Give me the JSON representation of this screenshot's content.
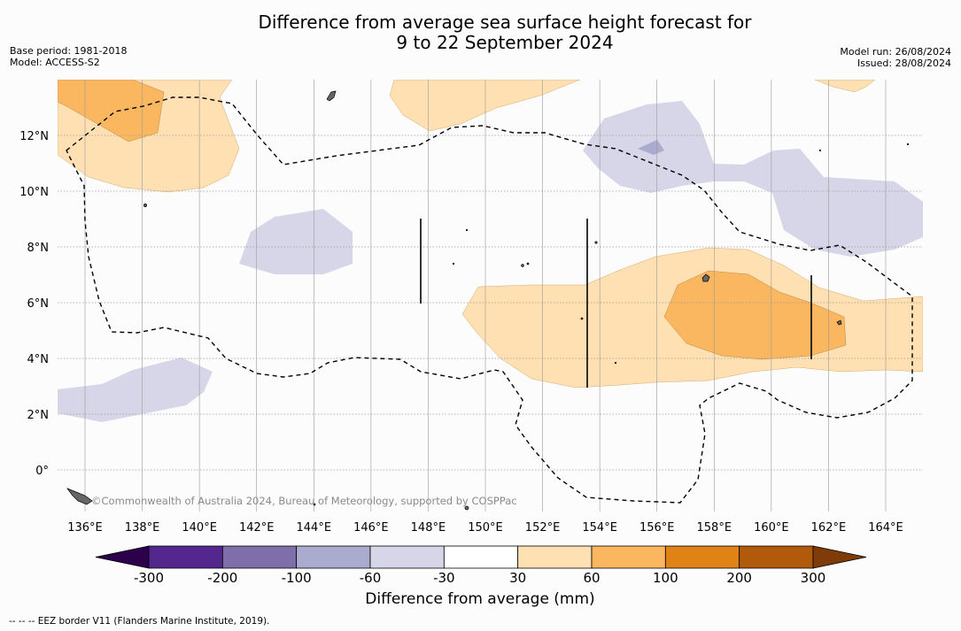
{
  "title": {
    "line1": "Difference from average sea surface height forecast for",
    "line2": "9 to 22 September 2024"
  },
  "meta": {
    "base_period": "Base period: 1981-2018",
    "model": "Model: ACCESS-S2",
    "model_run": "Model run: 26/08/2024",
    "issued": "Issued: 28/08/2024"
  },
  "credit": "©Commonwealth of Australia 2024, Bureau of Meteorology, supported by COSPPac",
  "footnote": "-- -- -- EEZ border V11 (Flanders Marine Institute, 2019).",
  "chart_data": {
    "type": "heatmap",
    "map_type": "filled contour map",
    "x_ticks": [
      "136°E",
      "138°E",
      "140°E",
      "142°E",
      "144°E",
      "146°E",
      "148°E",
      "150°E",
      "152°E",
      "154°E",
      "156°E",
      "158°E",
      "160°E",
      "162°E",
      "164°E"
    ],
    "x_tick_values": [
      136,
      138,
      140,
      142,
      144,
      146,
      148,
      150,
      152,
      154,
      156,
      158,
      160,
      162,
      164
    ],
    "y_ticks": [
      "0°",
      "2°N",
      "4°N",
      "6°N",
      "8°N",
      "10°N",
      "12°N"
    ],
    "y_tick_values": [
      0,
      2,
      4,
      6,
      8,
      10,
      12
    ],
    "lon_range": [
      135,
      166
    ],
    "lat_range": [
      -1.5,
      14
    ],
    "grid": true,
    "colorbar": {
      "label": "Difference from average (mm)",
      "extend": "both",
      "tick_labels": [
        "-300",
        "-200",
        "-100",
        "-60",
        "-30",
        "30",
        "60",
        "100",
        "200",
        "300"
      ],
      "bins": [
        {
          "range": [
            -300,
            -200
          ],
          "color": "#54278f"
        },
        {
          "range": [
            -200,
            -100
          ],
          "color": "#7e6fab"
        },
        {
          "range": [
            -100,
            -60
          ],
          "color": "#ababd0"
        },
        {
          "range": [
            -60,
            -30
          ],
          "color": "#d6d6e8"
        },
        {
          "range": [
            -30,
            30
          ],
          "color": "#ffffff"
        },
        {
          "range": [
            30,
            60
          ],
          "color": "#fee0b2"
        },
        {
          "range": [
            60,
            100
          ],
          "color": "#fbb660"
        },
        {
          "range": [
            100,
            200
          ],
          "color": "#e08316"
        },
        {
          "range": [
            200,
            300
          ],
          "color": "#b25a0b"
        }
      ],
      "under_color": "#2d004b",
      "over_color": "#7f3b08"
    },
    "regions": [
      {
        "level": "30 to 60",
        "color": "#fee0b2",
        "area": "northwest of map, 135-141E, 10-14N"
      },
      {
        "level": "60 to 100",
        "color": "#fbb660",
        "area": "135-138.5E, 12-14N"
      },
      {
        "level": "30 to 60",
        "color": "#fee0b2",
        "area": "148-152E, 12.7-14N"
      },
      {
        "level": "30 to 60",
        "color": "#fee0b2",
        "area": "161-163E, 13.6-14N"
      },
      {
        "level": "-60 to -30",
        "color": "#d6d6e8",
        "area": "154-166E, 8.3-13N"
      },
      {
        "level": "-100 to -60",
        "color": "#ababd0",
        "area": "156E, 11.5N"
      },
      {
        "level": "-60 to -30",
        "color": "#d6d6e8",
        "area": "141.5-146E, 7-8.8N"
      },
      {
        "level": "-60 to -30",
        "color": "#d6d6e8",
        "area": "135-140.5E, 1.8-4N"
      },
      {
        "level": "30 to 60",
        "color": "#fee0b2",
        "area": "149.5-166E, 3-8N"
      },
      {
        "level": "60 to 100",
        "color": "#fbb660",
        "area": "156.5-163E, 4-6.9N"
      }
    ],
    "eez_border": {
      "style": "dashed",
      "color": "#000000"
    }
  }
}
